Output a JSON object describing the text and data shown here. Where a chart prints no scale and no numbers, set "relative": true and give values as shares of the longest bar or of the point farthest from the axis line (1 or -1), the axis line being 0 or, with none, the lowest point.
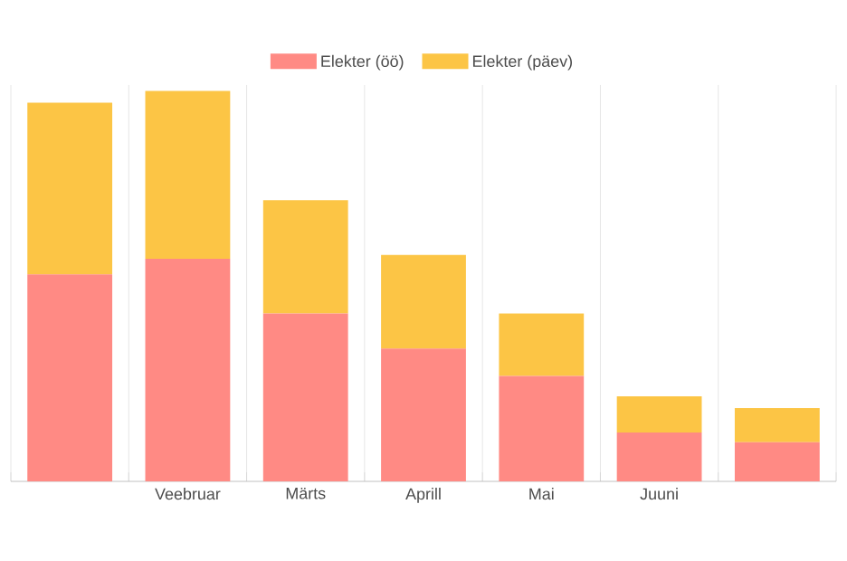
{
  "chart_data": {
    "type": "bar",
    "stacked": true,
    "relative": true,
    "grid": true,
    "legend": "top",
    "categories": [
      null,
      "Veebruar",
      "Märts",
      "Aprill",
      "Mai",
      "Juuni",
      null
    ],
    "series": [
      {
        "name": "Elekter (öö)",
        "color": "#ff8a84",
        "values": [
          0.53,
          0.57,
          0.43,
          0.34,
          0.27,
          0.125,
          0.1
        ]
      },
      {
        "name": "Elekter (päev)",
        "color": "#fcc545",
        "values": [
          0.44,
          0.43,
          0.29,
          0.24,
          0.16,
          0.093,
          0.088
        ]
      }
    ]
  }
}
